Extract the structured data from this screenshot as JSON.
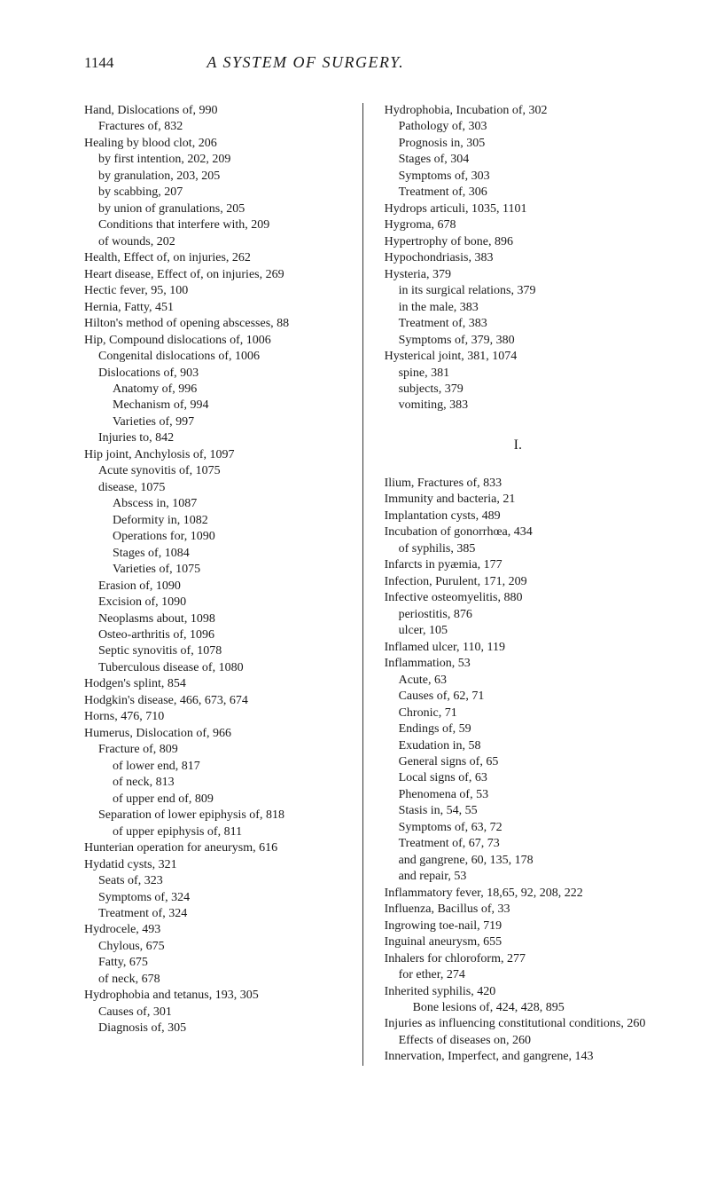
{
  "pageNumber": "1144",
  "title": "A SYSTEM OF SURGERY.",
  "sectionLetter": "I.",
  "leftColumn": [
    {
      "cls": "entry",
      "text": "Hand, Dislocations of, 990"
    },
    {
      "cls": "sub1",
      "text": "Fractures of, 832"
    },
    {
      "cls": "entry",
      "text": "Healing by blood clot, 206"
    },
    {
      "cls": "sub1",
      "text": "by first intention, 202, 209"
    },
    {
      "cls": "sub1",
      "text": "by granulation, 203, 205"
    },
    {
      "cls": "sub1",
      "text": "by scabbing, 207"
    },
    {
      "cls": "sub1",
      "text": "by union of granulations, 205"
    },
    {
      "cls": "sub1",
      "text": "Conditions that interfere with, 209"
    },
    {
      "cls": "sub1",
      "text": "of wounds, 202"
    },
    {
      "cls": "entry",
      "text": "Health, Effect of, on injuries, 262"
    },
    {
      "cls": "entry",
      "text": "Heart disease, Effect of, on injuries, 269"
    },
    {
      "cls": "entry",
      "text": "Hectic fever, 95, 100"
    },
    {
      "cls": "entry",
      "text": "Hernia, Fatty, 451"
    },
    {
      "cls": "entry",
      "text": "Hilton's method of opening abscesses, 88"
    },
    {
      "cls": "entry",
      "text": "Hip, Compound dislocations of, 1006"
    },
    {
      "cls": "sub1",
      "text": "Congenital dislocations of, 1006"
    },
    {
      "cls": "sub1",
      "text": "Dislocations of, 903"
    },
    {
      "cls": "sub2",
      "text": "Anatomy of, 996"
    },
    {
      "cls": "sub2",
      "text": "Mechanism of, 994"
    },
    {
      "cls": "sub2",
      "text": "Varieties of, 997"
    },
    {
      "cls": "sub1",
      "text": "Injuries to, 842"
    },
    {
      "cls": "entry",
      "text": "Hip joint, Anchylosis of, 1097"
    },
    {
      "cls": "sub1",
      "text": "Acute synovitis of, 1075"
    },
    {
      "cls": "sub1",
      "text": "disease, 1075"
    },
    {
      "cls": "sub2",
      "text": "Abscess in, 1087"
    },
    {
      "cls": "sub2",
      "text": "Deformity in, 1082"
    },
    {
      "cls": "sub2",
      "text": "Operations for, 1090"
    },
    {
      "cls": "sub2",
      "text": "Stages of, 1084"
    },
    {
      "cls": "sub2",
      "text": "Varieties of, 1075"
    },
    {
      "cls": "sub1",
      "text": "Erasion of, 1090"
    },
    {
      "cls": "sub1",
      "text": "Excision of, 1090"
    },
    {
      "cls": "sub1",
      "text": "Neoplasms about, 1098"
    },
    {
      "cls": "sub1",
      "text": "Osteo-arthritis of, 1096"
    },
    {
      "cls": "sub1",
      "text": "Septic synovitis of, 1078"
    },
    {
      "cls": "sub1",
      "text": "Tuberculous disease of, 1080"
    },
    {
      "cls": "entry",
      "text": "Hodgen's splint, 854"
    },
    {
      "cls": "entry",
      "text": "Hodgkin's disease, 466, 673, 674"
    },
    {
      "cls": "entry",
      "text": "Horns, 476, 710"
    },
    {
      "cls": "entry",
      "text": "Humerus, Dislocation of, 966"
    },
    {
      "cls": "sub1",
      "text": "Fracture of, 809"
    },
    {
      "cls": "sub2",
      "text": "of lower end, 817"
    },
    {
      "cls": "sub2",
      "text": "of neck, 813"
    },
    {
      "cls": "sub2",
      "text": "of upper end of, 809"
    },
    {
      "cls": "sub1",
      "text": "Separation of lower epiphysis of, 818"
    },
    {
      "cls": "sub2",
      "text": "of upper epiphysis of, 811"
    },
    {
      "cls": "entry",
      "text": "Hunterian operation for aneurysm, 616"
    },
    {
      "cls": "entry",
      "text": "Hydatid cysts, 321"
    },
    {
      "cls": "sub1",
      "text": "Seats of, 323"
    },
    {
      "cls": "sub1",
      "text": "Symptoms of, 324"
    },
    {
      "cls": "sub1",
      "text": "Treatment of, 324"
    },
    {
      "cls": "entry",
      "text": "Hydrocele, 493"
    },
    {
      "cls": "sub1",
      "text": "Chylous, 675"
    },
    {
      "cls": "sub1",
      "text": "Fatty, 675"
    },
    {
      "cls": "sub1",
      "text": "of neck, 678"
    },
    {
      "cls": "entry",
      "text": "Hydrophobia and tetanus, 193, 305"
    },
    {
      "cls": "sub1",
      "text": "Causes of, 301"
    },
    {
      "cls": "sub1",
      "text": "Diagnosis of, 305"
    }
  ],
  "rightColumnTop": [
    {
      "cls": "entry",
      "text": "Hydrophobia, Incubation of, 302"
    },
    {
      "cls": "sub1",
      "text": "Pathology of, 303"
    },
    {
      "cls": "sub1",
      "text": "Prognosis in, 305"
    },
    {
      "cls": "sub1",
      "text": "Stages of, 304"
    },
    {
      "cls": "sub1",
      "text": "Symptoms of, 303"
    },
    {
      "cls": "sub1",
      "text": "Treatment of, 306"
    },
    {
      "cls": "entry",
      "text": "Hydrops articuli, 1035, 1101"
    },
    {
      "cls": "entry",
      "text": "Hygroma, 678"
    },
    {
      "cls": "entry",
      "text": "Hypertrophy of bone, 896"
    },
    {
      "cls": "entry",
      "text": "Hypochondriasis, 383"
    },
    {
      "cls": "entry",
      "text": "Hysteria, 379"
    },
    {
      "cls": "sub1",
      "text": "in its surgical relations, 379"
    },
    {
      "cls": "sub1",
      "text": "in the male, 383"
    },
    {
      "cls": "sub1",
      "text": "Treatment of, 383"
    },
    {
      "cls": "sub1",
      "text": "Symptoms of, 379, 380"
    },
    {
      "cls": "entry",
      "text": "Hysterical joint, 381, 1074"
    },
    {
      "cls": "sub1",
      "text": "spine, 381"
    },
    {
      "cls": "sub1",
      "text": "subjects, 379"
    },
    {
      "cls": "sub1",
      "text": "vomiting, 383"
    }
  ],
  "rightColumnBottom": [
    {
      "cls": "entry",
      "text": "Ilium, Fractures of, 833"
    },
    {
      "cls": "entry",
      "text": "Immunity and bacteria, 21"
    },
    {
      "cls": "entry",
      "text": "Implantation cysts, 489"
    },
    {
      "cls": "entry",
      "text": "Incubation of gonorrhœa, 434"
    },
    {
      "cls": "sub1",
      "text": "of syphilis, 385"
    },
    {
      "cls": "entry",
      "text": "Infarcts in pyæmia, 177"
    },
    {
      "cls": "entry",
      "text": "Infection, Purulent, 171, 209"
    },
    {
      "cls": "entry",
      "text": "Infective osteomyelitis, 880"
    },
    {
      "cls": "sub1",
      "text": "periostitis, 876"
    },
    {
      "cls": "sub1",
      "text": "ulcer, 105"
    },
    {
      "cls": "entry",
      "text": "Inflamed ulcer, 110, 119"
    },
    {
      "cls": "entry",
      "text": "Inflammation, 53"
    },
    {
      "cls": "sub1",
      "text": "Acute, 63"
    },
    {
      "cls": "sub1",
      "text": "Causes of, 62, 71"
    },
    {
      "cls": "sub1",
      "text": "Chronic, 71"
    },
    {
      "cls": "sub1",
      "text": "Endings of, 59"
    },
    {
      "cls": "sub1",
      "text": "Exudation in, 58"
    },
    {
      "cls": "sub1",
      "text": "General signs of, 65"
    },
    {
      "cls": "sub1",
      "text": "Local signs of, 63"
    },
    {
      "cls": "sub1",
      "text": "Phenomena of, 53"
    },
    {
      "cls": "sub1",
      "text": "Stasis in, 54, 55"
    },
    {
      "cls": "sub1",
      "text": "Symptoms of, 63, 72"
    },
    {
      "cls": "sub1",
      "text": "Treatment of, 67, 73"
    },
    {
      "cls": "sub1",
      "text": "and gangrene, 60, 135, 178"
    },
    {
      "cls": "sub1",
      "text": "and repair, 53"
    },
    {
      "cls": "entry",
      "text": "Inflammatory fever, 18,65, 92, 208, 222"
    },
    {
      "cls": "entry",
      "text": "Influenza, Bacillus of, 33"
    },
    {
      "cls": "entry",
      "text": "Ingrowing toe-nail, 719"
    },
    {
      "cls": "entry",
      "text": "Inguinal aneurysm, 655"
    },
    {
      "cls": "entry",
      "text": "Inhalers for chloroform, 277"
    },
    {
      "cls": "sub1",
      "text": "for ether, 274"
    },
    {
      "cls": "entry",
      "text": "Inherited syphilis, 420"
    },
    {
      "cls": "sub2",
      "text": "Bone lesions of, 424, 428, 895"
    },
    {
      "cls": "entry",
      "text": "Injuries as influencing constitutional conditions, 260"
    },
    {
      "cls": "sub1",
      "text": "Effects of diseases on, 260"
    },
    {
      "cls": "entry",
      "text": "Innervation, Imperfect, and gangrene, 143"
    }
  ]
}
